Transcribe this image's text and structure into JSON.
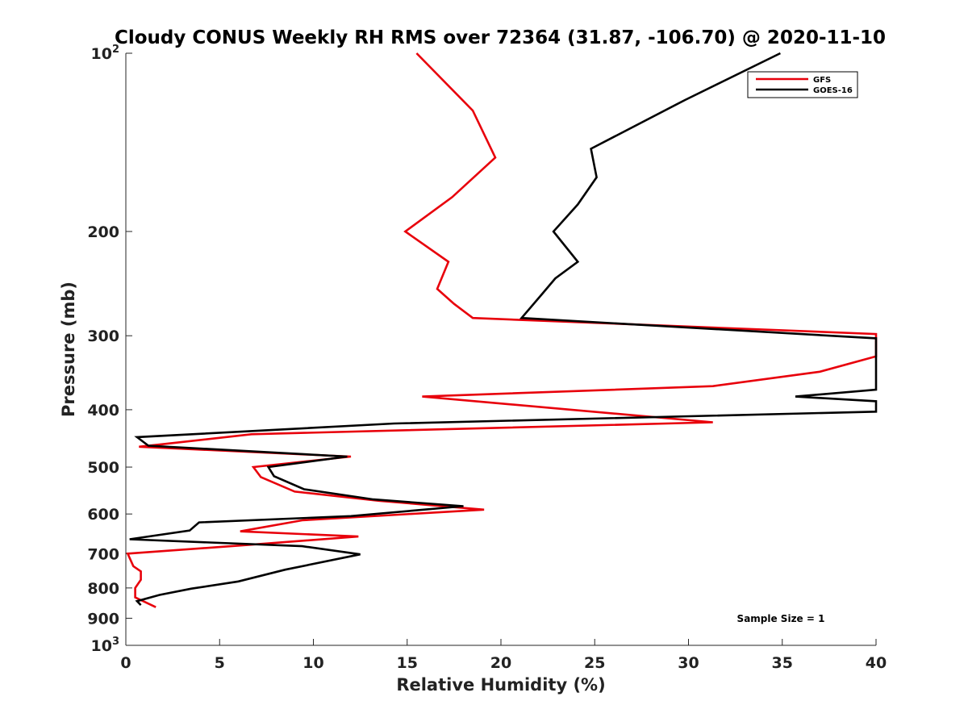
{
  "chart_data": {
    "type": "line",
    "title": "Cloudy CONUS Weekly RH RMS over 72364 (31.87, -106.70) @ 2020-11-10",
    "xlabel": "Relative Humidity (%)",
    "ylabel": "Pressure (mb)",
    "xlim": [
      0,
      40
    ],
    "ylim": [
      100,
      1000
    ],
    "y_scale": "log",
    "y_reversed": true,
    "grid": false,
    "legend_position": "top-right",
    "x_ticks": [
      "0",
      "5",
      "10",
      "15",
      "20",
      "25",
      "30",
      "35",
      "40"
    ],
    "x_tick_values": [
      0,
      5,
      10,
      15,
      20,
      25,
      30,
      35,
      40
    ],
    "y_ticks": [
      {
        "value": 100,
        "base": "10",
        "exp": "2"
      },
      {
        "value": 200,
        "base": "200",
        "exp": ""
      },
      {
        "value": 300,
        "base": "300",
        "exp": ""
      },
      {
        "value": 400,
        "base": "400",
        "exp": ""
      },
      {
        "value": 500,
        "base": "500",
        "exp": ""
      },
      {
        "value": 600,
        "base": "600",
        "exp": ""
      },
      {
        "value": 700,
        "base": "700",
        "exp": ""
      },
      {
        "value": 800,
        "base": "800",
        "exp": ""
      },
      {
        "value": 900,
        "base": "900",
        "exp": ""
      },
      {
        "value": 1000,
        "base": "10",
        "exp": "3"
      }
    ],
    "annotation": "Sample Size = 1",
    "series": [
      {
        "name": "GFS",
        "color": "#e8000b",
        "points": [
          [
            15.5,
            100
          ],
          [
            18.5,
            125
          ],
          [
            19.7,
            150
          ],
          [
            17.4,
            175
          ],
          [
            14.9,
            200
          ],
          [
            17.2,
            225
          ],
          [
            16.6,
            250
          ],
          [
            17.5,
            265
          ],
          [
            18.5,
            280
          ],
          [
            40.0,
            298
          ],
          [
            40.0,
            325
          ],
          [
            37.0,
            345
          ],
          [
            31.3,
            365
          ],
          [
            15.8,
            380
          ],
          [
            31.3,
            420
          ],
          [
            6.7,
            440
          ],
          [
            1.8,
            458
          ],
          [
            0.7,
            462
          ],
          [
            12.0,
            480
          ],
          [
            6.8,
            500
          ],
          [
            7.2,
            520
          ],
          [
            9.0,
            550
          ],
          [
            13.5,
            570
          ],
          [
            19.1,
            590
          ],
          [
            9.4,
            615
          ],
          [
            6.1,
            642
          ],
          [
            12.4,
            655
          ],
          [
            6.2,
            678
          ],
          [
            0.1,
            700
          ],
          [
            0.4,
            735
          ],
          [
            0.8,
            750
          ],
          [
            0.8,
            775
          ],
          [
            0.5,
            800
          ],
          [
            0.5,
            830
          ],
          [
            1.6,
            862
          ]
        ]
      },
      {
        "name": "GOES-16",
        "color": "#000000",
        "points": [
          [
            34.9,
            100
          ],
          [
            29.8,
            120
          ],
          [
            24.8,
            145
          ],
          [
            25.1,
            162
          ],
          [
            24.1,
            180
          ],
          [
            22.8,
            200
          ],
          [
            24.1,
            225
          ],
          [
            22.9,
            240
          ],
          [
            22.2,
            255
          ],
          [
            21.1,
            280
          ],
          [
            40.0,
            303
          ],
          [
            40.0,
            370
          ],
          [
            35.7,
            380
          ],
          [
            40.0,
            387
          ],
          [
            40.0,
            403
          ],
          [
            14.3,
            422
          ],
          [
            0.6,
            445
          ],
          [
            1.0,
            455
          ],
          [
            1.2,
            460
          ],
          [
            11.8,
            480
          ],
          [
            7.6,
            500
          ],
          [
            7.9,
            518
          ],
          [
            9.5,
            545
          ],
          [
            13.2,
            567
          ],
          [
            18.0,
            582
          ],
          [
            12.0,
            605
          ],
          [
            3.9,
            620
          ],
          [
            3.4,
            640
          ],
          [
            0.2,
            662
          ],
          [
            9.4,
            680
          ],
          [
            12.5,
            702
          ],
          [
            8.5,
            745
          ],
          [
            6.0,
            780
          ],
          [
            3.5,
            802
          ],
          [
            1.8,
            822
          ],
          [
            0.6,
            842
          ],
          [
            0.8,
            855
          ]
        ]
      }
    ]
  }
}
